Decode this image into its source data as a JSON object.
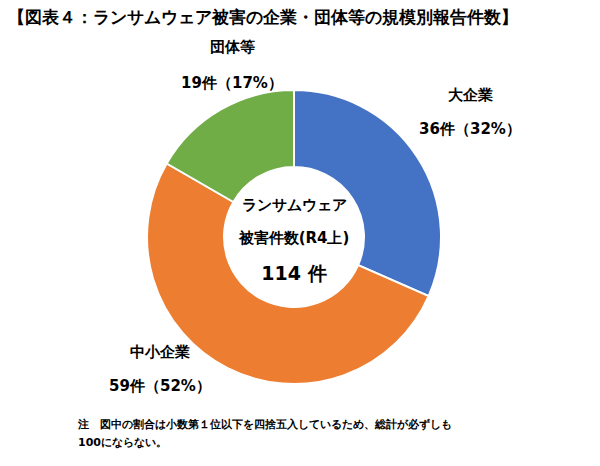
{
  "chart_data": {
    "type": "pie",
    "title": "【図表４：ランサムウェア被害の企業・団体等の規模別報告件数】",
    "categories": [
      "大企業",
      "中小企業",
      "団体等"
    ],
    "values": [
      36,
      59,
      19
    ],
    "value_labels": [
      "36件（32%）",
      "59件（52%）",
      "19件（17%）"
    ],
    "colors": [
      "#4472c4",
      "#ed7d31",
      "#70ad47"
    ],
    "data_labels": true,
    "center_text": [
      "ランサムウェア",
      "被害件数(R4上)"
    ],
    "total": 114,
    "total_label": "114 件",
    "note": [
      "注　図中の割合は小数第１位以下を四捨五入しているため、総計が必ずしも",
      "100にならない。"
    ]
  }
}
